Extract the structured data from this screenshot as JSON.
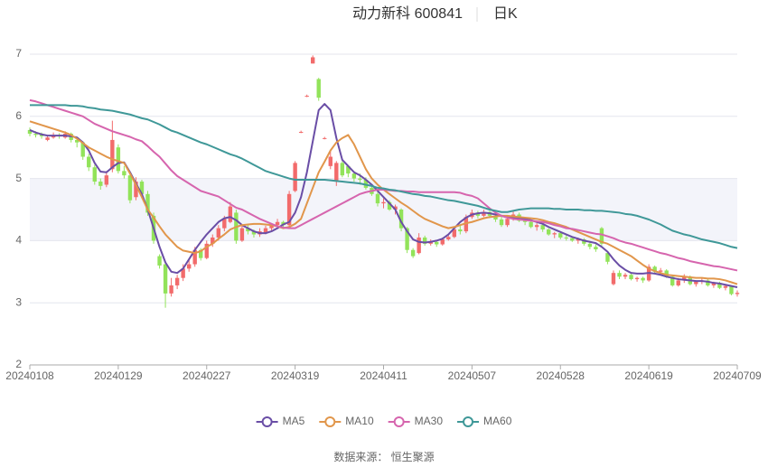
{
  "chart_data": {
    "type": "candlestick",
    "title": "动力新科 600841",
    "subtitle": "日K",
    "source": "数据来源： 恒生聚源",
    "categories": [
      "20240108",
      null,
      null,
      null,
      null,
      null,
      null,
      null,
      null,
      null,
      null,
      null,
      null,
      null,
      null,
      "20240129",
      null,
      null,
      null,
      null,
      null,
      null,
      null,
      null,
      null,
      null,
      null,
      null,
      null,
      null,
      "20240227",
      null,
      null,
      null,
      null,
      null,
      null,
      null,
      null,
      null,
      null,
      null,
      null,
      null,
      null,
      "20240319",
      null,
      null,
      null,
      null,
      null,
      null,
      null,
      null,
      null,
      null,
      null,
      null,
      null,
      null,
      "20240411",
      null,
      null,
      null,
      null,
      null,
      null,
      null,
      null,
      null,
      null,
      null,
      null,
      null,
      null,
      "20240507",
      null,
      null,
      null,
      null,
      null,
      null,
      null,
      null,
      null,
      null,
      null,
      null,
      null,
      null,
      "20240528",
      null,
      null,
      null,
      null,
      null,
      null,
      null,
      null,
      null,
      null,
      null,
      null,
      null,
      null,
      "20240619",
      null,
      null,
      null,
      null,
      null,
      null,
      null,
      null,
      null,
      null,
      null,
      null,
      null,
      null,
      "20240709"
    ],
    "up_color": "#f26b6b",
    "down_color": "#92e35a",
    "ohlc": [
      [
        5.78,
        5.82,
        5.68,
        5.72
      ],
      [
        5.72,
        5.76,
        5.66,
        5.7
      ],
      [
        5.7,
        5.74,
        5.64,
        5.68
      ],
      [
        5.62,
        5.7,
        5.6,
        5.66
      ],
      [
        5.66,
        5.74,
        5.64,
        5.7
      ],
      [
        5.7,
        5.73,
        5.64,
        5.68
      ],
      [
        5.66,
        5.76,
        5.64,
        5.72
      ],
      [
        5.72,
        5.74,
        5.58,
        5.62
      ],
      [
        5.62,
        5.66,
        5.5,
        5.58
      ],
      [
        5.58,
        5.6,
        5.3,
        5.35
      ],
      [
        5.35,
        5.4,
        5.12,
        5.18
      ],
      [
        5.18,
        5.22,
        4.9,
        4.95
      ],
      [
        4.95,
        5.0,
        4.82,
        4.88
      ],
      [
        4.9,
        5.12,
        4.86,
        5.05
      ],
      [
        5.15,
        5.93,
        5.1,
        5.62
      ],
      [
        5.5,
        5.55,
        5.08,
        5.12
      ],
      [
        5.12,
        5.2,
        5.0,
        5.05
      ],
      [
        5.05,
        5.08,
        4.6,
        4.65
      ],
      [
        4.7,
        5.02,
        4.65,
        4.95
      ],
      [
        4.95,
        4.98,
        4.7,
        4.75
      ],
      [
        4.75,
        4.8,
        4.4,
        4.45
      ],
      [
        4.4,
        4.45,
        3.95,
        4.0
      ],
      [
        3.75,
        3.78,
        3.55,
        3.6
      ],
      [
        3.62,
        3.65,
        2.92,
        3.15
      ],
      [
        3.15,
        3.4,
        3.1,
        3.28
      ],
      [
        3.28,
        3.45,
        3.22,
        3.4
      ],
      [
        3.4,
        3.62,
        3.35,
        3.55
      ],
      [
        3.55,
        3.7,
        3.5,
        3.62
      ],
      [
        3.62,
        3.9,
        3.58,
        3.85
      ],
      [
        3.85,
        3.88,
        3.68,
        3.72
      ],
      [
        3.72,
        4.0,
        3.7,
        3.95
      ],
      [
        3.95,
        4.1,
        3.9,
        4.05
      ],
      [
        4.05,
        4.25,
        4.0,
        4.2
      ],
      [
        4.2,
        4.4,
        4.15,
        4.35
      ],
      [
        4.3,
        4.62,
        4.28,
        4.55
      ],
      [
        4.45,
        4.5,
        3.95,
        4.0
      ],
      [
        4.0,
        4.25,
        3.98,
        4.2
      ],
      [
        4.2,
        4.25,
        4.1,
        4.15
      ],
      [
        4.15,
        4.18,
        4.05,
        4.1
      ],
      [
        4.1,
        4.2,
        4.06,
        4.15
      ],
      [
        4.12,
        4.24,
        4.1,
        4.2
      ],
      [
        4.2,
        4.28,
        4.15,
        4.25
      ],
      [
        4.25,
        4.35,
        4.22,
        4.3
      ],
      [
        4.3,
        4.32,
        4.2,
        4.25
      ],
      [
        4.25,
        4.8,
        4.22,
        4.75
      ],
      [
        4.8,
        5.28,
        4.78,
        5.25
      ],
      [
        5.74,
        5.77,
        5.73,
        5.75
      ],
      [
        6.32,
        6.35,
        6.31,
        6.33
      ],
      [
        6.85,
        6.98,
        6.85,
        6.95
      ],
      [
        6.6,
        6.62,
        6.25,
        6.3
      ],
      [
        5.64,
        5.67,
        5.63,
        5.65
      ],
      [
        5.2,
        5.45,
        5.15,
        5.35
      ],
      [
        4.95,
        5.28,
        4.88,
        5.25
      ],
      [
        5.25,
        5.28,
        5.02,
        5.05
      ],
      [
        5.2,
        5.22,
        5.02,
        5.08
      ],
      [
        5.08,
        5.12,
        4.95,
        5.0
      ],
      [
        5.0,
        5.08,
        4.9,
        4.98
      ],
      [
        4.98,
        5.02,
        4.82,
        4.85
      ],
      [
        4.85,
        4.88,
        4.72,
        4.75
      ],
      [
        4.75,
        4.78,
        4.55,
        4.6
      ],
      [
        4.6,
        4.68,
        4.52,
        4.62
      ],
      [
        4.62,
        4.65,
        4.48,
        4.5
      ],
      [
        4.5,
        4.58,
        4.42,
        4.55
      ],
      [
        4.5,
        4.52,
        4.15,
        4.2
      ],
      [
        4.2,
        4.22,
        3.8,
        3.85
      ],
      [
        3.85,
        3.88,
        3.72,
        3.75
      ],
      [
        3.8,
        4.12,
        3.78,
        4.05
      ],
      [
        4.05,
        4.08,
        3.92,
        3.95
      ],
      [
        3.95,
        4.02,
        3.92,
        3.98
      ],
      [
        3.98,
        4.0,
        3.9,
        3.94
      ],
      [
        3.94,
        4.05,
        3.92,
        4.02
      ],
      [
        4.02,
        4.1,
        4.0,
        4.06
      ],
      [
        4.06,
        4.22,
        4.04,
        4.18
      ],
      [
        4.18,
        4.24,
        4.1,
        4.15
      ],
      [
        4.15,
        4.42,
        4.12,
        4.38
      ],
      [
        4.38,
        4.5,
        4.35,
        4.45
      ],
      [
        4.45,
        4.48,
        4.36,
        4.4
      ],
      [
        4.4,
        4.5,
        4.38,
        4.46
      ],
      [
        4.46,
        4.48,
        4.36,
        4.4
      ],
      [
        4.4,
        4.45,
        4.3,
        4.34
      ],
      [
        4.34,
        4.4,
        4.22,
        4.25
      ],
      [
        4.25,
        4.38,
        4.22,
        4.35
      ],
      [
        4.35,
        4.48,
        4.32,
        4.42
      ],
      [
        4.42,
        4.45,
        4.3,
        4.32
      ],
      [
        4.32,
        4.36,
        4.25,
        4.3
      ],
      [
        4.3,
        4.34,
        4.2,
        4.22
      ],
      [
        4.22,
        4.28,
        4.16,
        4.25
      ],
      [
        4.25,
        4.27,
        4.14,
        4.18
      ],
      [
        4.18,
        4.2,
        4.08,
        4.1
      ],
      [
        4.1,
        4.14,
        4.04,
        4.12
      ],
      [
        4.12,
        4.14,
        4.02,
        4.05
      ],
      [
        4.05,
        4.1,
        4.0,
        4.04
      ],
      [
        4.04,
        4.06,
        3.98,
        4.0
      ],
      [
        4.0,
        4.05,
        3.95,
        4.02
      ],
      [
        4.02,
        4.04,
        3.92,
        3.95
      ],
      [
        3.95,
        3.98,
        3.86,
        3.9
      ],
      [
        3.9,
        3.94,
        3.82,
        3.86
      ],
      [
        4.2,
        4.22,
        3.92,
        3.95
      ],
      [
        3.8,
        3.82,
        3.62,
        3.66
      ],
      [
        3.3,
        3.52,
        3.28,
        3.48
      ],
      [
        3.48,
        3.52,
        3.38,
        3.42
      ],
      [
        3.42,
        3.48,
        3.38,
        3.45
      ],
      [
        3.45,
        3.47,
        3.36,
        3.38
      ],
      [
        3.38,
        3.42,
        3.34,
        3.4
      ],
      [
        3.4,
        3.42,
        3.32,
        3.36
      ],
      [
        3.36,
        3.62,
        3.34,
        3.58
      ],
      [
        3.58,
        3.6,
        3.46,
        3.5
      ],
      [
        3.5,
        3.56,
        3.44,
        3.52
      ],
      [
        3.52,
        3.54,
        3.4,
        3.42
      ],
      [
        3.42,
        3.44,
        3.26,
        3.28
      ],
      [
        3.28,
        3.4,
        3.26,
        3.36
      ],
      [
        3.36,
        3.46,
        3.32,
        3.42
      ],
      [
        3.42,
        3.44,
        3.28,
        3.3
      ],
      [
        3.3,
        3.36,
        3.26,
        3.34
      ],
      [
        3.34,
        3.4,
        3.3,
        3.36
      ],
      [
        3.36,
        3.38,
        3.26,
        3.28
      ],
      [
        3.28,
        3.34,
        3.24,
        3.32
      ],
      [
        3.32,
        3.34,
        3.22,
        3.24
      ],
      [
        3.24,
        3.3,
        3.2,
        3.27
      ],
      [
        3.27,
        3.28,
        3.12,
        3.14
      ],
      [
        3.14,
        3.2,
        3.1,
        3.16
      ]
    ],
    "series": [
      {
        "name": "MA5",
        "color": "#6a4ea6",
        "values": [
          5.78,
          5.74,
          5.71,
          5.69,
          5.69,
          5.69,
          5.69,
          5.68,
          5.66,
          5.58,
          5.45,
          5.25,
          5.11,
          5.1,
          5.18,
          5.25,
          5.26,
          5.1,
          4.92,
          4.75,
          4.5,
          4.2,
          3.9,
          3.65,
          3.5,
          3.48,
          3.55,
          3.7,
          3.85,
          3.98,
          4.1,
          4.2,
          4.3,
          4.36,
          4.38,
          4.33,
          4.25,
          4.2,
          4.15,
          4.12,
          4.12,
          4.15,
          4.2,
          4.26,
          4.3,
          4.45,
          4.7,
          5.1,
          5.6,
          6.1,
          6.2,
          6.1,
          5.65,
          5.3,
          5.2,
          5.1,
          5.05,
          4.98,
          4.9,
          4.8,
          4.7,
          4.6,
          4.5,
          4.3,
          4.15,
          4.02,
          3.98,
          3.97,
          3.98,
          4.0,
          4.03,
          4.1,
          4.2,
          4.3,
          4.37,
          4.42,
          4.44,
          4.45,
          4.44,
          4.42,
          4.4,
          4.38,
          4.37,
          4.37,
          4.35,
          4.33,
          4.3,
          4.27,
          4.22,
          4.18,
          4.14,
          4.1,
          4.06,
          4.03,
          4.0,
          3.98,
          3.96,
          3.9,
          3.82,
          3.7,
          3.6,
          3.53,
          3.48,
          3.47,
          3.47,
          3.48,
          3.47,
          3.45,
          3.42,
          3.4,
          3.38,
          3.37,
          3.36,
          3.35,
          3.35,
          3.34,
          3.32,
          3.31,
          3.29,
          3.27,
          3.25
        ]
      },
      {
        "name": "MA10",
        "color": "#e1964b",
        "values": [
          5.92,
          5.89,
          5.86,
          5.83,
          5.8,
          5.77,
          5.74,
          5.7,
          5.64,
          5.57,
          5.5,
          5.45,
          5.4,
          5.35,
          5.31,
          5.28,
          5.25,
          5.08,
          4.9,
          4.7,
          4.5,
          4.37,
          4.23,
          4.1,
          4.0,
          3.9,
          3.84,
          3.82,
          3.8,
          3.83,
          3.9,
          3.95,
          4.03,
          4.1,
          4.18,
          4.22,
          4.25,
          4.26,
          4.27,
          4.27,
          4.26,
          4.25,
          4.23,
          4.2,
          4.22,
          4.27,
          4.35,
          4.6,
          4.85,
          5.1,
          5.27,
          5.45,
          5.58,
          5.65,
          5.7,
          5.55,
          5.35,
          5.15,
          5.0,
          4.9,
          4.82,
          4.75,
          4.68,
          4.61,
          4.55,
          4.48,
          4.41,
          4.35,
          4.31,
          4.27,
          4.23,
          4.2,
          4.22,
          4.25,
          4.28,
          4.3,
          4.33,
          4.36,
          4.38,
          4.39,
          4.4,
          4.4,
          4.39,
          4.38,
          4.37,
          4.36,
          4.35,
          4.33,
          4.3,
          4.28,
          4.25,
          4.22,
          4.18,
          4.14,
          4.1,
          4.06,
          4.02,
          3.98,
          3.95,
          3.9,
          3.85,
          3.8,
          3.75,
          3.68,
          3.61,
          3.55,
          3.51,
          3.48,
          3.45,
          3.44,
          3.43,
          3.42,
          3.41,
          3.4,
          3.4,
          3.39,
          3.39,
          3.38,
          3.36,
          3.33,
          3.3
        ]
      },
      {
        "name": "MA30",
        "color": "#d665ae",
        "values": [
          6.26,
          6.24,
          6.21,
          6.18,
          6.15,
          6.12,
          6.09,
          6.06,
          6.03,
          6.0,
          5.94,
          5.88,
          5.84,
          5.8,
          5.76,
          5.73,
          5.7,
          5.67,
          5.63,
          5.6,
          5.52,
          5.43,
          5.35,
          5.24,
          5.13,
          5.04,
          4.98,
          4.92,
          4.86,
          4.8,
          4.77,
          4.74,
          4.71,
          4.65,
          4.59,
          4.53,
          4.5,
          4.45,
          4.4,
          4.35,
          4.31,
          4.27,
          4.23,
          4.21,
          4.2,
          4.2,
          4.25,
          4.3,
          4.35,
          4.4,
          4.45,
          4.5,
          4.55,
          4.6,
          4.65,
          4.7,
          4.75,
          4.78,
          4.8,
          4.82,
          4.82,
          4.81,
          4.8,
          4.8,
          4.79,
          4.79,
          4.78,
          4.78,
          4.78,
          4.78,
          4.78,
          4.78,
          4.78,
          4.77,
          4.74,
          4.72,
          4.68,
          4.6,
          4.52,
          4.45,
          4.4,
          4.37,
          4.35,
          4.34,
          4.33,
          4.32,
          4.31,
          4.3,
          4.28,
          4.25,
          4.23,
          4.2,
          4.19,
          4.17,
          4.15,
          4.13,
          4.11,
          4.1,
          4.07,
          4.04,
          4.0,
          3.97,
          3.95,
          3.92,
          3.89,
          3.86,
          3.83,
          3.8,
          3.78,
          3.75,
          3.72,
          3.7,
          3.67,
          3.65,
          3.63,
          3.61,
          3.59,
          3.58,
          3.56,
          3.54,
          3.52
        ]
      },
      {
        "name": "MA60",
        "color": "#3f9898",
        "values": [
          6.18,
          6.18,
          6.18,
          6.18,
          6.18,
          6.18,
          6.18,
          6.17,
          6.17,
          6.16,
          6.14,
          6.13,
          6.11,
          6.1,
          6.09,
          6.07,
          6.05,
          6.03,
          6.0,
          5.97,
          5.95,
          5.91,
          5.87,
          5.82,
          5.77,
          5.74,
          5.7,
          5.66,
          5.62,
          5.58,
          5.55,
          5.51,
          5.47,
          5.43,
          5.39,
          5.36,
          5.32,
          5.27,
          5.22,
          5.17,
          5.12,
          5.09,
          5.06,
          5.03,
          5.0,
          4.98,
          4.98,
          4.98,
          4.98,
          4.98,
          4.98,
          4.97,
          4.96,
          4.95,
          4.94,
          4.93,
          4.92,
          4.9,
          4.88,
          4.85,
          4.84,
          4.82,
          4.81,
          4.79,
          4.77,
          4.75,
          4.74,
          4.72,
          4.71,
          4.69,
          4.67,
          4.65,
          4.64,
          4.62,
          4.6,
          4.58,
          4.56,
          4.53,
          4.5,
          4.48,
          4.46,
          4.46,
          4.48,
          4.5,
          4.51,
          4.52,
          4.52,
          4.52,
          4.52,
          4.51,
          4.51,
          4.5,
          4.5,
          4.5,
          4.49,
          4.49,
          4.48,
          4.48,
          4.47,
          4.46,
          4.45,
          4.43,
          4.42,
          4.4,
          4.37,
          4.34,
          4.3,
          4.26,
          4.21,
          4.16,
          4.13,
          4.1,
          4.08,
          4.05,
          4.02,
          4.0,
          3.98,
          3.96,
          3.93,
          3.9,
          3.88
        ]
      }
    ],
    "ylim": [
      2,
      7
    ],
    "yticks": [
      2,
      3,
      4,
      5,
      6,
      7
    ],
    "grid": true,
    "legend": "bottom"
  }
}
